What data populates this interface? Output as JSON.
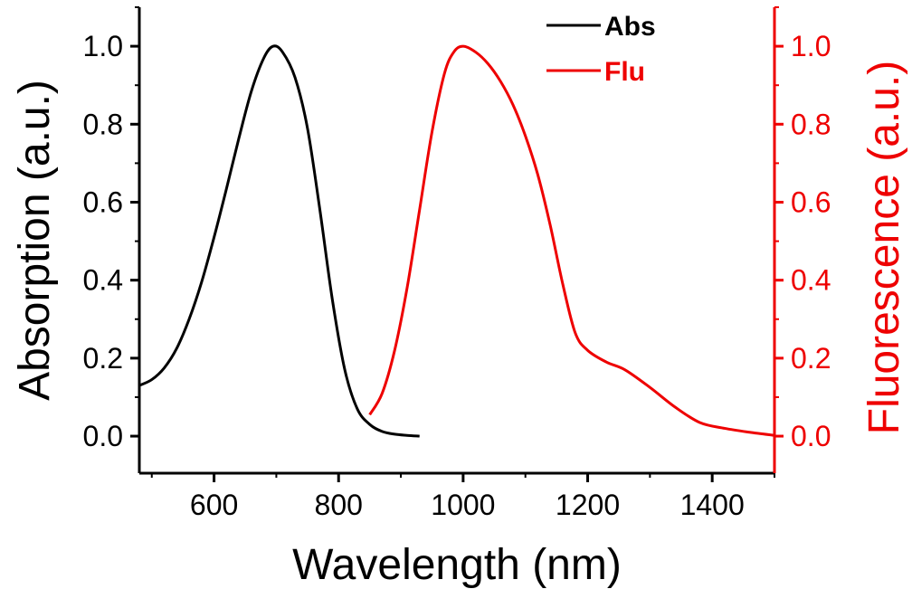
{
  "chart_data": {
    "type": "line",
    "xlabel": "Wavelength (nm)",
    "ylabel_left": "Absorption (a.u.)",
    "ylabel_right": "Fluorescence (a.u.)",
    "xlim": [
      480,
      1500
    ],
    "ylim": [
      -0.095,
      1.1
    ],
    "xticks": [
      600,
      800,
      1000,
      1200,
      1400
    ],
    "xtick_labels": [
      "600",
      "800",
      "1000",
      "1200",
      "1400"
    ],
    "yticks": [
      0.0,
      0.2,
      0.4,
      0.6,
      0.8,
      1.0
    ],
    "ytick_labels": [
      "0.0",
      "0.2",
      "0.4",
      "0.6",
      "0.8",
      "1.0"
    ],
    "left_axis_color": "#000000",
    "right_axis_color": "#ee0000",
    "grid": false,
    "legend_position": "top-right",
    "series": [
      {
        "name": "Abs",
        "axis": "left",
        "color": "#000000",
        "x": [
          480,
          500,
          520,
          540,
          560,
          580,
          600,
          620,
          640,
          660,
          680,
          695,
          710,
          730,
          750,
          770,
          790,
          810,
          830,
          850,
          870,
          890,
          910,
          930
        ],
        "y": [
          0.13,
          0.145,
          0.175,
          0.225,
          0.3,
          0.395,
          0.51,
          0.635,
          0.765,
          0.885,
          0.97,
          1.0,
          0.985,
          0.92,
          0.79,
          0.58,
          0.35,
          0.17,
          0.07,
          0.03,
          0.012,
          0.005,
          0.002,
          0.0
        ]
      },
      {
        "name": "Flu",
        "axis": "right",
        "color": "#ee0000",
        "x": [
          850,
          870,
          890,
          910,
          930,
          950,
          970,
          985,
          1000,
          1020,
          1040,
          1060,
          1080,
          1100,
          1120,
          1140,
          1160,
          1180,
          1200,
          1230,
          1260,
          1300,
          1340,
          1380,
          1420,
          1460,
          1500
        ],
        "y": [
          0.055,
          0.11,
          0.22,
          0.38,
          0.58,
          0.78,
          0.93,
          0.985,
          1.0,
          0.985,
          0.955,
          0.91,
          0.85,
          0.77,
          0.67,
          0.54,
          0.39,
          0.265,
          0.22,
          0.19,
          0.17,
          0.125,
          0.075,
          0.035,
          0.02,
          0.01,
          0.002
        ]
      }
    ]
  }
}
